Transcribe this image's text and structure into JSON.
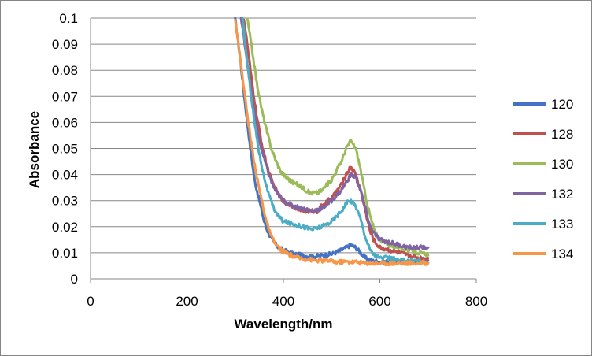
{
  "chart_data": {
    "type": "line",
    "title": "",
    "xlabel": "Wavelength/nm",
    "ylabel": "Absorbance",
    "xlim": [
      0,
      800
    ],
    "ylim": [
      0,
      0.1
    ],
    "xticks": [
      0,
      200,
      400,
      600,
      800
    ],
    "yticks": [
      0,
      0.01,
      0.02,
      0.03,
      0.04,
      0.05,
      0.06,
      0.07,
      0.08,
      0.09,
      0.1
    ],
    "xtick_labels": [
      "0",
      "200",
      "400",
      "600",
      "800"
    ],
    "ytick_labels": [
      "0",
      "0.01",
      "0.02",
      "0.03",
      "0.04",
      "0.05",
      "0.06",
      "0.07",
      "0.08",
      "0.09",
      "0.1"
    ],
    "grid": "horizontal",
    "legend_position": "right",
    "series": [
      {
        "name": "120",
        "color": "#4472C4",
        "points": [
          [
            300,
            0.1
          ],
          [
            310,
            0.085
          ],
          [
            320,
            0.068
          ],
          [
            330,
            0.052
          ],
          [
            340,
            0.038
          ],
          [
            350,
            0.03
          ],
          [
            360,
            0.022
          ],
          [
            370,
            0.017
          ],
          [
            380,
            0.014
          ],
          [
            390,
            0.012
          ],
          [
            400,
            0.011
          ],
          [
            420,
            0.0095
          ],
          [
            440,
            0.009
          ],
          [
            460,
            0.0085
          ],
          [
            480,
            0.009
          ],
          [
            500,
            0.0095
          ],
          [
            520,
            0.011
          ],
          [
            530,
            0.012
          ],
          [
            540,
            0.013
          ],
          [
            550,
            0.012
          ],
          [
            560,
            0.01
          ],
          [
            570,
            0.008
          ],
          [
            580,
            0.007
          ],
          [
            600,
            0.0065
          ],
          [
            620,
            0.0065
          ],
          [
            640,
            0.0065
          ],
          [
            660,
            0.0065
          ],
          [
            680,
            0.0065
          ],
          [
            700,
            0.007
          ]
        ]
      },
      {
        "name": "128",
        "color": "#C0504D",
        "points": [
          [
            318,
            0.1
          ],
          [
            325,
            0.09
          ],
          [
            335,
            0.075
          ],
          [
            345,
            0.062
          ],
          [
            355,
            0.052
          ],
          [
            365,
            0.044
          ],
          [
            375,
            0.038
          ],
          [
            385,
            0.034
          ],
          [
            395,
            0.031
          ],
          [
            405,
            0.029
          ],
          [
            420,
            0.028
          ],
          [
            440,
            0.026
          ],
          [
            460,
            0.026
          ],
          [
            470,
            0.026
          ],
          [
            480,
            0.028
          ],
          [
            500,
            0.031
          ],
          [
            520,
            0.036
          ],
          [
            530,
            0.04
          ],
          [
            540,
            0.043
          ],
          [
            550,
            0.04
          ],
          [
            560,
            0.034
          ],
          [
            570,
            0.026
          ],
          [
            580,
            0.018
          ],
          [
            590,
            0.014
          ],
          [
            600,
            0.012
          ],
          [
            620,
            0.011
          ],
          [
            640,
            0.01
          ],
          [
            660,
            0.009
          ],
          [
            680,
            0.008
          ],
          [
            700,
            0.008
          ]
        ]
      },
      {
        "name": "130",
        "color": "#9BBB59",
        "points": [
          [
            325,
            0.1
          ],
          [
            335,
            0.088
          ],
          [
            345,
            0.075
          ],
          [
            355,
            0.065
          ],
          [
            365,
            0.057
          ],
          [
            375,
            0.05
          ],
          [
            385,
            0.045
          ],
          [
            395,
            0.041
          ],
          [
            405,
            0.039
          ],
          [
            420,
            0.037
          ],
          [
            440,
            0.035
          ],
          [
            455,
            0.033
          ],
          [
            470,
            0.033
          ],
          [
            480,
            0.034
          ],
          [
            500,
            0.038
          ],
          [
            520,
            0.045
          ],
          [
            530,
            0.05
          ],
          [
            540,
            0.053
          ],
          [
            550,
            0.05
          ],
          [
            560,
            0.042
          ],
          [
            570,
            0.032
          ],
          [
            580,
            0.024
          ],
          [
            590,
            0.018
          ],
          [
            600,
            0.015
          ],
          [
            620,
            0.013
          ],
          [
            640,
            0.012
          ],
          [
            660,
            0.011
          ],
          [
            680,
            0.01
          ],
          [
            700,
            0.009
          ]
        ]
      },
      {
        "name": "132",
        "color": "#8064A2",
        "points": [
          [
            312,
            0.1
          ],
          [
            320,
            0.09
          ],
          [
            330,
            0.076
          ],
          [
            340,
            0.063
          ],
          [
            350,
            0.053
          ],
          [
            360,
            0.046
          ],
          [
            370,
            0.04
          ],
          [
            380,
            0.035
          ],
          [
            390,
            0.032
          ],
          [
            400,
            0.03
          ],
          [
            420,
            0.028
          ],
          [
            440,
            0.027
          ],
          [
            460,
            0.026
          ],
          [
            480,
            0.027
          ],
          [
            500,
            0.03
          ],
          [
            520,
            0.034
          ],
          [
            530,
            0.037
          ],
          [
            540,
            0.04
          ],
          [
            550,
            0.039
          ],
          [
            560,
            0.034
          ],
          [
            570,
            0.027
          ],
          [
            580,
            0.02
          ],
          [
            590,
            0.017
          ],
          [
            600,
            0.015
          ],
          [
            620,
            0.014
          ],
          [
            640,
            0.013
          ],
          [
            660,
            0.012
          ],
          [
            680,
            0.012
          ],
          [
            700,
            0.012
          ]
        ]
      },
      {
        "name": "133",
        "color": "#4BACC6",
        "points": [
          [
            315,
            0.1
          ],
          [
            322,
            0.088
          ],
          [
            330,
            0.075
          ],
          [
            340,
            0.06
          ],
          [
            350,
            0.048
          ],
          [
            360,
            0.039
          ],
          [
            370,
            0.032
          ],
          [
            380,
            0.027
          ],
          [
            390,
            0.024
          ],
          [
            400,
            0.022
          ],
          [
            420,
            0.021
          ],
          [
            440,
            0.02
          ],
          [
            460,
            0.019
          ],
          [
            480,
            0.02
          ],
          [
            500,
            0.022
          ],
          [
            520,
            0.026
          ],
          [
            530,
            0.029
          ],
          [
            540,
            0.03
          ],
          [
            550,
            0.028
          ],
          [
            560,
            0.023
          ],
          [
            570,
            0.016
          ],
          [
            580,
            0.011
          ],
          [
            590,
            0.009
          ],
          [
            600,
            0.008
          ],
          [
            620,
            0.008
          ],
          [
            640,
            0.007
          ],
          [
            660,
            0.007
          ],
          [
            680,
            0.007
          ],
          [
            700,
            0.006
          ]
        ]
      },
      {
        "name": "134",
        "color": "#F79646",
        "points": [
          [
            300,
            0.1
          ],
          [
            308,
            0.088
          ],
          [
            315,
            0.078
          ],
          [
            325,
            0.063
          ],
          [
            335,
            0.05
          ],
          [
            345,
            0.039
          ],
          [
            355,
            0.03
          ],
          [
            365,
            0.022
          ],
          [
            375,
            0.016
          ],
          [
            385,
            0.013
          ],
          [
            395,
            0.011
          ],
          [
            410,
            0.0095
          ],
          [
            430,
            0.008
          ],
          [
            450,
            0.0075
          ],
          [
            470,
            0.007
          ],
          [
            490,
            0.007
          ],
          [
            510,
            0.0065
          ],
          [
            530,
            0.0065
          ],
          [
            550,
            0.0065
          ],
          [
            570,
            0.006
          ],
          [
            590,
            0.006
          ],
          [
            610,
            0.006
          ],
          [
            630,
            0.006
          ],
          [
            650,
            0.006
          ],
          [
            670,
            0.006
          ],
          [
            690,
            0.006
          ],
          [
            700,
            0.006
          ]
        ]
      }
    ]
  }
}
